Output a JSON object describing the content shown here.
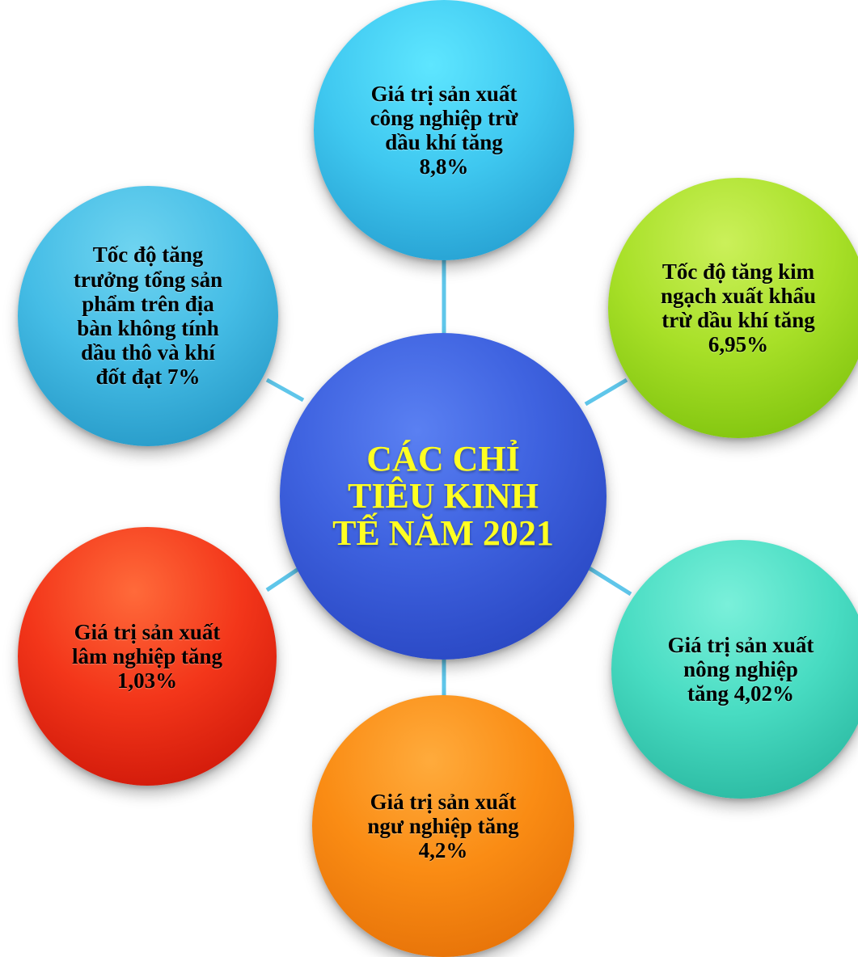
{
  "center": {
    "label": "CÁC CHỈ\nTIÊU KINH\nTẾ NĂM 2021",
    "color": "#3f63e0",
    "text_color": "#ffff22"
  },
  "nodes": {
    "top": {
      "label": "Giá trị sản xuất\ncông nghiệp trừ\ndầu khí  tăng\n8,8%",
      "color": "#3fc8f0"
    },
    "upper_right": {
      "label": "Tốc độ tăng kim\nngạch xuất khẩu\ntrừ dầu khí tăng\n6,95%",
      "color": "#a8e028"
    },
    "lower_right": {
      "label": "Giá trị sản xuất\nnông nghiệp\ntăng 4,02%",
      "color": "#48dcc2"
    },
    "bottom": {
      "label": "Giá trị sản xuất\nngư nghiệp tăng\n4,2%",
      "color": "#fa8c14"
    },
    "lower_left": {
      "label": "Giá trị sản xuất\nlâm nghiệp tăng\n1,03%",
      "color": "#f3361a"
    },
    "upper_left": {
      "label": "Tốc độ tăng\ntrưởng tổng sản\nphẩm trên địa\nbàn không tính\ndầu thô và khí\nđốt đạt 7%",
      "color": "#45bde6"
    }
  },
  "connector_color": "#5fc6ea"
}
